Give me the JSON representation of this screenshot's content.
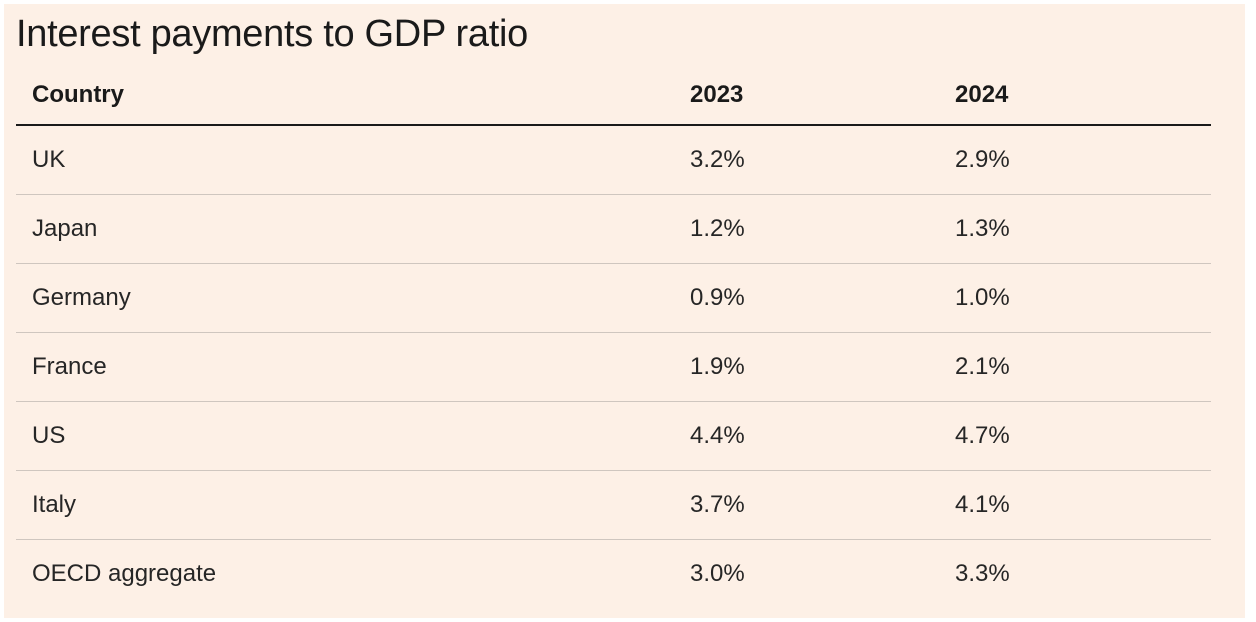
{
  "chart_data": {
    "type": "table",
    "title": "Interest payments to GDP ratio",
    "columns": [
      "Country",
      "2023",
      "2024"
    ],
    "rows": [
      [
        "UK",
        "3.2%",
        "2.9%"
      ],
      [
        "Japan",
        "1.2%",
        "1.3%"
      ],
      [
        "Germany",
        "0.9%",
        "1.0%"
      ],
      [
        "France",
        "1.9%",
        "2.1%"
      ],
      [
        "US",
        "4.4%",
        "4.7%"
      ],
      [
        "Italy",
        "3.7%",
        "4.1%"
      ],
      [
        "OECD aggregate",
        "3.0%",
        "3.3%"
      ]
    ]
  },
  "colors": {
    "background": "#fdf0e6",
    "text": "#1a1a1a",
    "divider": "#cfc6bf"
  }
}
